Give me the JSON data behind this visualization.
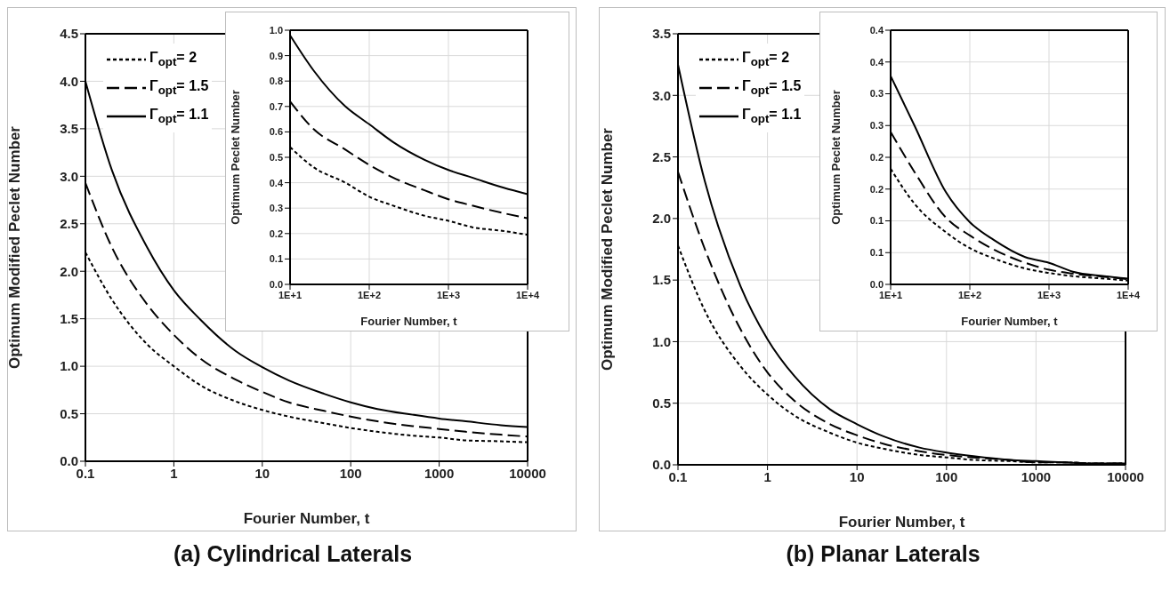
{
  "chart_data": [
    {
      "type": "line",
      "title": "(a) Cylindrical Laterals",
      "xlabel": "Fourier Number, t",
      "ylabel": "Optimum Modified Peclet Number",
      "log": "x",
      "grid": true,
      "legend": "top left",
      "xlim": [
        0.1,
        10000
      ],
      "xticks": [
        0.1,
        1,
        10,
        100,
        1000,
        10000
      ],
      "ylim": [
        0,
        4.5
      ],
      "yticks": [
        {
          "value": 0,
          "label": "0.0"
        },
        0.5,
        {
          "value": 1,
          "label": "1.0"
        },
        1.5,
        {
          "value": 2,
          "label": "2.0"
        },
        2.5,
        {
          "value": 3,
          "label": "3.0"
        },
        3.5,
        {
          "value": 4,
          "label": "4.0"
        },
        4.5
      ],
      "x": [
        0.1,
        0.2,
        0.5,
        1,
        2,
        5,
        10,
        20,
        50,
        100,
        200,
        500,
        1000,
        2000,
        5000,
        10000
      ],
      "series": [
        {
          "name": "Γ$_{opt}$= 2",
          "color": "#000000",
          "line_style": "dotted",
          "values": [
            2.2,
            1.7,
            1.23,
            1.0,
            0.8,
            0.63,
            0.54,
            0.47,
            0.4,
            0.35,
            0.31,
            0.27,
            0.25,
            0.22,
            0.21,
            0.2
          ]
        },
        {
          "name": "Γ$_{opt}$= 1.5",
          "color": "#000000",
          "line_style": "dashed",
          "values": [
            2.93,
            2.25,
            1.65,
            1.33,
            1.08,
            0.86,
            0.73,
            0.62,
            0.53,
            0.47,
            0.42,
            0.37,
            0.34,
            0.31,
            0.28,
            0.26
          ]
        },
        {
          "name": "Γ$_{opt}$= 1.1",
          "color": "#000000",
          "line_style": "solid",
          "values": [
            4.0,
            3.06,
            2.25,
            1.8,
            1.49,
            1.16,
            0.99,
            0.85,
            0.71,
            0.62,
            0.55,
            0.49,
            0.45,
            0.42,
            0.38,
            0.36
          ]
        }
      ]
    },
    {
      "type": "line",
      "xlabel": "Fourier Number, t",
      "ylabel": "Optimum Peclet Number",
      "log": "x",
      "grid": true,
      "xlim": [
        10,
        10000
      ],
      "xticks": [
        {
          "value": 10,
          "label": "1E+1"
        },
        {
          "value": 100,
          "label": "1E+2"
        },
        {
          "value": 1000,
          "label": "1E+3"
        },
        {
          "value": 10000,
          "label": "1E+4"
        }
      ],
      "ylim": [
        0,
        1
      ],
      "yticks": [
        {
          "value": 0,
          "label": "0.0"
        },
        0.1,
        0.2,
        0.3,
        0.4,
        0.5,
        0.6,
        0.7,
        0.8,
        0.9,
        {
          "value": 1,
          "label": "1.0"
        }
      ],
      "x": [
        10,
        20,
        50,
        100,
        200,
        500,
        1000,
        2000,
        5000,
        10000
      ],
      "series": [
        {
          "color": "#000000",
          "line_style": "dotted",
          "values": [
            0.54,
            0.46,
            0.4,
            0.345,
            0.31,
            0.27,
            0.25,
            0.225,
            0.21,
            0.195
          ]
        },
        {
          "color": "#000000",
          "line_style": "dashed",
          "values": [
            0.72,
            0.61,
            0.53,
            0.47,
            0.42,
            0.37,
            0.335,
            0.31,
            0.28,
            0.26
          ]
        },
        {
          "color": "#000000",
          "line_style": "solid",
          "values": [
            0.98,
            0.84,
            0.7,
            0.63,
            0.56,
            0.49,
            0.45,
            0.42,
            0.38,
            0.355
          ]
        }
      ]
    },
    {
      "type": "line",
      "title": "(b) Planar Laterals",
      "xlabel": "Fourier Number, t",
      "ylabel": "Optimum Modified Peclet Number",
      "log": "x",
      "grid": true,
      "legend": "top left",
      "xlim": [
        0.1,
        10000
      ],
      "xticks": [
        0.1,
        1,
        10,
        100,
        1000,
        10000
      ],
      "ylim": [
        0,
        3.5
      ],
      "yticks": [
        {
          "value": 0,
          "label": "0.0"
        },
        0.5,
        {
          "value": 1,
          "label": "1.0"
        },
        1.5,
        {
          "value": 2,
          "label": "2.0"
        },
        2.5,
        {
          "value": 3,
          "label": "3.0"
        },
        3.5
      ],
      "x": [
        0.1,
        0.2,
        0.5,
        1,
        2,
        5,
        10,
        20,
        50,
        100,
        200,
        500,
        1000,
        2000,
        5000,
        10000
      ],
      "series": [
        {
          "name": "Γ$_{opt}$= 2",
          "color": "#000000",
          "line_style": "dotted",
          "values": [
            1.78,
            1.25,
            0.8,
            0.57,
            0.4,
            0.26,
            0.18,
            0.13,
            0.08,
            0.06,
            0.04,
            0.03,
            0.02,
            0.02,
            0.01,
            0.01
          ]
        },
        {
          "name": "Γ$_{opt}$= 1.5",
          "color": "#000000",
          "line_style": "dashed",
          "values": [
            2.38,
            1.75,
            1.1,
            0.75,
            0.52,
            0.33,
            0.24,
            0.17,
            0.11,
            0.08,
            0.06,
            0.04,
            0.02,
            0.02,
            0.01,
            0.01
          ]
        },
        {
          "name": "Γ$_{opt}$= 1.1",
          "color": "#000000",
          "line_style": "solid",
          "values": [
            3.25,
            2.3,
            1.45,
            1.02,
            0.72,
            0.45,
            0.33,
            0.23,
            0.14,
            0.1,
            0.07,
            0.04,
            0.03,
            0.02,
            0.01,
            0.01
          ]
        }
      ]
    },
    {
      "type": "line",
      "xlabel": "Fourier Number, t",
      "ylabel": "Optimum Peclet Number",
      "log": "x",
      "grid": true,
      "xlim": [
        10,
        10000
      ],
      "xticks": [
        {
          "value": 10,
          "label": "1E+1"
        },
        {
          "value": 100,
          "label": "1E+2"
        },
        {
          "value": 1000,
          "label": "1E+3"
        },
        {
          "value": 10000,
          "label": "1E+4"
        }
      ],
      "ylim": [
        0,
        0.4
      ],
      "yticks": [
        {
          "value": 0,
          "label": "0.0"
        },
        {
          "value": 0.05,
          "label": "0.1"
        },
        0.1,
        {
          "value": 0.15,
          "label": "0.2"
        },
        0.2,
        {
          "value": 0.25,
          "label": "0.3"
        },
        0.3,
        {
          "value": 0.35,
          "label": "0.4"
        },
        0.4
      ],
      "x": [
        10,
        20,
        50,
        100,
        200,
        500,
        1000,
        2000,
        5000,
        10000
      ],
      "series": [
        {
          "color": "#000000",
          "line_style": "dotted",
          "values": [
            0.182,
            0.127,
            0.082,
            0.057,
            0.041,
            0.025,
            0.018,
            0.013,
            0.009,
            0.006
          ]
        },
        {
          "color": "#000000",
          "line_style": "dashed",
          "values": [
            0.24,
            0.177,
            0.105,
            0.077,
            0.055,
            0.034,
            0.023,
            0.017,
            0.012,
            0.008
          ]
        },
        {
          "color": "#000000",
          "line_style": "solid",
          "values": [
            0.328,
            0.25,
            0.145,
            0.098,
            0.07,
            0.043,
            0.034,
            0.02,
            0.013,
            0.009
          ]
        }
      ]
    }
  ]
}
